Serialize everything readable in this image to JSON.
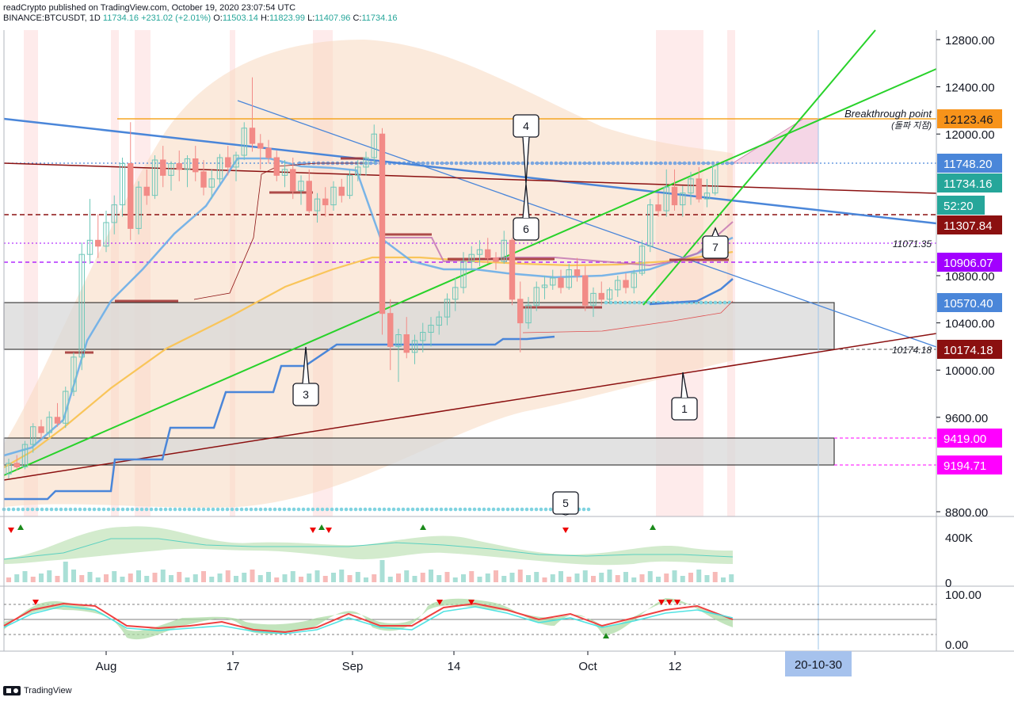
{
  "header": {
    "publisher_line": "readCrypto published on TradingView.com, October 19, 2020 23:07:54 UTC",
    "symbol": "BINANCE:BTCUSDT, 1D",
    "last": "11734.16",
    "change": "+231.02 (+2.01%)",
    "open_label": "O:",
    "open": "11503.14",
    "high_label": "H:",
    "high": "11823.99",
    "low_label": "L:",
    "low": "11407.96",
    "close_label": "C:",
    "close": "11734.16"
  },
  "footer": {
    "brand": "TradingView"
  },
  "colors": {
    "up": "#26a69a",
    "down": "#ef5350",
    "green_line": "#28d22a",
    "blue_line": "#4a86d9",
    "maroon": "#8b1010",
    "orange": "#f5a623",
    "purple": "#a200ff"
  },
  "chart_data": {
    "type": "candlestick",
    "title": "",
    "x_tick_labels": [
      "Aug",
      "17",
      "Sep",
      "14",
      "Oct",
      "12"
    ],
    "y_tick_labels": [
      "12800.00",
      "12400.00",
      "12000.00",
      "10800.00",
      "10400.00",
      "10000.00",
      "9600.00",
      "8800.00"
    ],
    "ylim": [
      8800,
      12950
    ],
    "price_labels": [
      {
        "text": "12123.46",
        "value": 12123.46,
        "color": "#f7931a",
        "fg": "#131722"
      },
      {
        "text": "11748.20",
        "value": 11748.2,
        "color": "#4a86d9",
        "fg": "#ffffff"
      },
      {
        "text": "11734.16",
        "value": 11734.16,
        "color": "#26a69a",
        "fg": "#ffffff"
      },
      {
        "text": "52:20",
        "value": 11540,
        "color": "#26a69a",
        "fg": "#ffffff"
      },
      {
        "text": "11307.84",
        "value": 11307.84,
        "color": "#8b1010",
        "fg": "#ffffff"
      },
      {
        "text": "10906.07",
        "value": 10906.07,
        "color": "#a200ff",
        "fg": "#ffffff"
      },
      {
        "text": "10570.40",
        "value": 10570.4,
        "color": "#4a86d9",
        "fg": "#ffffff"
      },
      {
        "text": "10174.18",
        "value": 10174.18,
        "color": "#8b1010",
        "fg": "#ffffff"
      },
      {
        "text": "9419.00",
        "value": 9419.0,
        "color": "#ff00ff",
        "fg": "#ffffff"
      },
      {
        "text": "9194.71",
        "value": 9194.71,
        "color": "#ff00ff",
        "fg": "#ffffff"
      }
    ],
    "annotations": [
      {
        "text": "Breakthrough point",
        "value": 12190
      },
      {
        "text": "(돌파 지점)",
        "value": 12070
      },
      {
        "text": "11071.35",
        "value": 11071.35
      },
      {
        "text": "10174.18",
        "value": 10174.18
      }
    ],
    "callouts": [
      "1",
      "3",
      "4",
      "5",
      "6",
      "7"
    ],
    "date_label": "20-10-30",
    "volume_axis_labels": [
      "400K",
      "0"
    ],
    "oscillator_axis_labels": [
      "100.00",
      "0.00"
    ],
    "candles_ohlc": [
      [
        9120,
        9250,
        9080,
        9210
      ],
      [
        9210,
        9280,
        9150,
        9180
      ],
      [
        9180,
        9400,
        9160,
        9370
      ],
      [
        9370,
        9550,
        9300,
        9520
      ],
      [
        9520,
        9580,
        9420,
        9470
      ],
      [
        9470,
        9650,
        9430,
        9600
      ],
      [
        9600,
        9720,
        9520,
        9550
      ],
      [
        9550,
        9860,
        9510,
        9820
      ],
      [
        9820,
        10150,
        9780,
        10110
      ],
      [
        10110,
        11080,
        10000,
        10980
      ],
      [
        10980,
        11450,
        10900,
        11100
      ],
      [
        11100,
        11320,
        10950,
        11050
      ],
      [
        11050,
        11350,
        11000,
        11250
      ],
      [
        11250,
        11480,
        11150,
        11400
      ],
      [
        11400,
        11800,
        11300,
        11750
      ],
      [
        11750,
        12100,
        11100,
        11200
      ],
      [
        11200,
        11600,
        11150,
        11550
      ],
      [
        11550,
        11700,
        11400,
        11480
      ],
      [
        11480,
        11820,
        11450,
        11780
      ],
      [
        11780,
        11900,
        11550,
        11650
      ],
      [
        11650,
        11770,
        11520,
        11750
      ],
      [
        11750,
        11860,
        11600,
        11700
      ],
      [
        11700,
        11820,
        11550,
        11790
      ],
      [
        11790,
        11900,
        11600,
        11680
      ],
      [
        11680,
        11780,
        11480,
        11550
      ],
      [
        11550,
        11700,
        11450,
        11620
      ],
      [
        11620,
        11830,
        11580,
        11800
      ],
      [
        11800,
        11900,
        11650,
        11720
      ],
      [
        11720,
        11850,
        11600,
        11820
      ],
      [
        11820,
        12100,
        11780,
        12050
      ],
      [
        12050,
        12480,
        11850,
        11920
      ],
      [
        11920,
        12000,
        11700,
        11880
      ],
      [
        11880,
        11950,
        11750,
        11800
      ],
      [
        11800,
        11860,
        11600,
        11650
      ],
      [
        11650,
        11780,
        11550,
        11700
      ],
      [
        11700,
        11800,
        11450,
        11520
      ],
      [
        11520,
        11650,
        11400,
        11600
      ],
      [
        11600,
        11700,
        11330,
        11350
      ],
      [
        11350,
        11500,
        11250,
        11450
      ],
      [
        11450,
        11550,
        11300,
        11400
      ],
      [
        11400,
        11600,
        11350,
        11550
      ],
      [
        11550,
        11620,
        11420,
        11480
      ],
      [
        11480,
        11700,
        11450,
        11650
      ],
      [
        11650,
        11780,
        11600,
        11720
      ],
      [
        11720,
        11850,
        11650,
        11800
      ],
      [
        11800,
        12080,
        11750,
        12000
      ],
      [
        12000,
        12050,
        10300,
        10480
      ],
      [
        10480,
        10600,
        10000,
        10200
      ],
      [
        10200,
        10350,
        9900,
        10300
      ],
      [
        10300,
        10450,
        10100,
        10150
      ],
      [
        10150,
        10300,
        10050,
        10250
      ],
      [
        10250,
        10400,
        10150,
        10320
      ],
      [
        10320,
        10450,
        10200,
        10380
      ],
      [
        10380,
        10500,
        10300,
        10450
      ],
      [
        10450,
        10650,
        10380,
        10600
      ],
      [
        10600,
        10780,
        10500,
        10700
      ],
      [
        10700,
        11000,
        10650,
        10920
      ],
      [
        10920,
        11050,
        10850,
        10980
      ],
      [
        10980,
        11100,
        10880,
        11020
      ],
      [
        11020,
        11120,
        10900,
        10950
      ],
      [
        10950,
        11000,
        10850,
        10920
      ],
      [
        10920,
        11180,
        10900,
        11100
      ],
      [
        11100,
        11120,
        10550,
        10600
      ],
      [
        10600,
        10750,
        10150,
        10400
      ],
      [
        10400,
        10620,
        10350,
        10550
      ],
      [
        10550,
        10750,
        10500,
        10700
      ],
      [
        10700,
        10800,
        10600,
        10720
      ],
      [
        10720,
        10850,
        10680,
        10780
      ],
      [
        10780,
        10850,
        10650,
        10700
      ],
      [
        10700,
        10900,
        10680,
        10850
      ],
      [
        10850,
        10950,
        10750,
        10800
      ],
      [
        10800,
        10880,
        10500,
        10550
      ],
      [
        10550,
        10700,
        10450,
        10650
      ],
      [
        10650,
        10750,
        10550,
        10600
      ],
      [
        10600,
        10700,
        10560,
        10680
      ],
      [
        10680,
        10800,
        10620,
        10760
      ],
      [
        10760,
        10820,
        10650,
        10700
      ],
      [
        10700,
        10850,
        10650,
        10820
      ],
      [
        10820,
        11100,
        10800,
        11050
      ],
      [
        11050,
        11450,
        11000,
        11400
      ],
      [
        11400,
        11500,
        11300,
        11350
      ],
      [
        11350,
        11700,
        11300,
        11550
      ],
      [
        11550,
        11700,
        11350,
        11400
      ],
      [
        11400,
        11560,
        11300,
        11500
      ],
      [
        11500,
        11680,
        11400,
        11620
      ],
      [
        11620,
        11720,
        11420,
        11450
      ],
      [
        11450,
        11620,
        11380,
        11500
      ],
      [
        11500,
        11700,
        11480,
        11734
      ]
    ]
  }
}
